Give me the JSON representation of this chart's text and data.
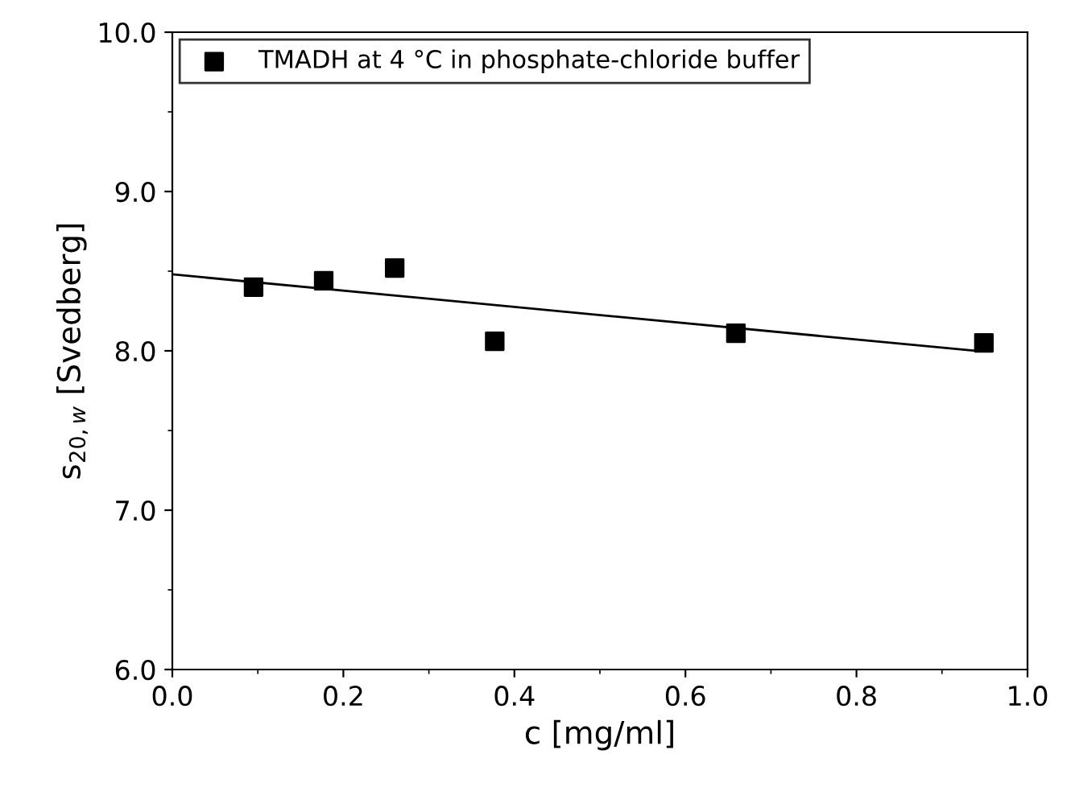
{
  "chart_data": {
    "type": "scatter",
    "xlabel": "c [mg/ml]",
    "ylabel": "s$_{20,w}$ [Svedberg]",
    "x": [
      0.095,
      0.177,
      0.26,
      0.377,
      0.659,
      0.949
    ],
    "series": [
      {
        "name": "TMADH at 4 °C in phosphate-chloride buffer",
        "color": "#000000",
        "values": [
          8.4,
          8.44,
          8.52,
          8.06,
          8.11,
          8.05
        ],
        "marker": "square"
      },
      {
        "type": "line",
        "color": "#000000",
        "x": [
          0.0,
          0.94
        ],
        "values": [
          8.48,
          8.0
        ],
        "marker": "none",
        "line_style": "solid"
      }
    ],
    "xlim": [
      0.0,
      1.0
    ],
    "xticks": [
      {
        "value": 0,
        "label": "0.0"
      },
      0.2,
      0.4,
      0.6,
      0.8,
      {
        "value": 1,
        "label": "1.0"
      }
    ],
    "ylim": [
      6.0,
      10.0
    ],
    "yticks": [
      {
        "value": 6,
        "label": "6.0"
      },
      {
        "value": 7,
        "label": "7.0"
      },
      {
        "value": 8,
        "label": "8.0"
      },
      {
        "value": 9,
        "label": "9.0"
      },
      {
        "value": 10,
        "label": "10.0"
      }
    ],
    "grid": false,
    "legend": "top left"
  }
}
